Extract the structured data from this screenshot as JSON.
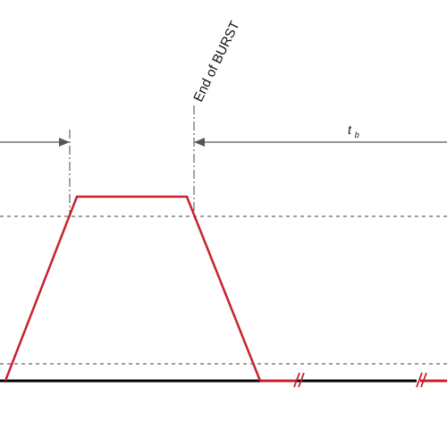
{
  "labels": {
    "end_of_burst": "End of BURST",
    "tb_main": "t",
    "tb_sub": "b"
  },
  "colors": {
    "pulse": "#c8202f",
    "baseline": "#000000",
    "guide": "#666666",
    "arrow": "#555555"
  }
}
